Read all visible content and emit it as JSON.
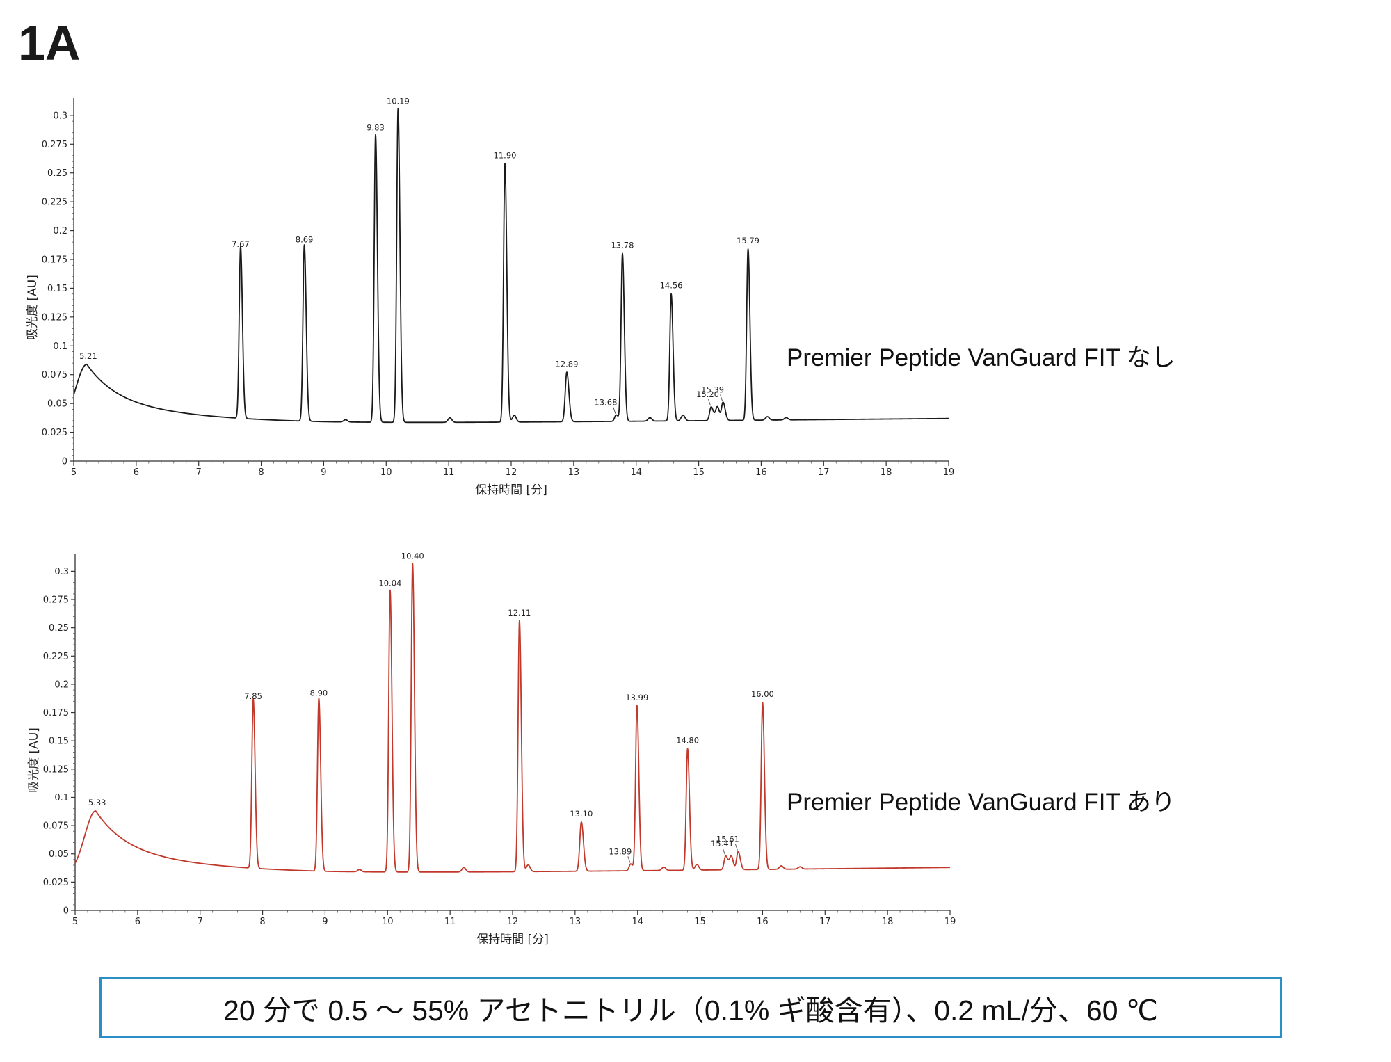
{
  "figure_label": "1A",
  "conditions": "20 分で 0.5 ～ 55% アセトニトリル（0.1% ギ酸含有）、0.2 mL/分、60 ℃",
  "colors": {
    "top_trace": "#1a1a1a",
    "bottom_trace": "#c0392b",
    "box_border": "#2a8fc4"
  },
  "chart_data": [
    {
      "type": "line",
      "panel_label": "Premier Peptide VanGuard FIT なし",
      "xlabel": "保持時間 [分]",
      "ylabel": "吸光度 [AU]",
      "xlim": [
        5,
        19
      ],
      "ylim": [
        0,
        0.3
      ],
      "xticks": [
        "5",
        "6",
        "7",
        "8",
        "9",
        "10",
        "11",
        "12",
        "13",
        "14",
        "15",
        "16",
        "17",
        "18",
        "19"
      ],
      "yticks": [
        "0",
        "0.025",
        "0.05",
        "0.075",
        "0.1",
        "0.125",
        "0.15",
        "0.175",
        "0.2",
        "0.225",
        "0.25",
        "0.275",
        "0.3"
      ],
      "color": "#1a1a1a",
      "baseline_start": 0.032,
      "baseline_end": 0.037,
      "hump": {
        "rt": 5.21,
        "height": 0.084
      },
      "peaks": [
        {
          "rt": 7.67,
          "height": 0.181,
          "label": "7.67"
        },
        {
          "rt": 8.69,
          "height": 0.185,
          "label": "8.69"
        },
        {
          "rt": 9.83,
          "height": 0.282,
          "label": "9.83"
        },
        {
          "rt": 10.19,
          "height": 0.305,
          "label": "10.19"
        },
        {
          "rt": 11.9,
          "height": 0.258,
          "label": "11.90"
        },
        {
          "rt": 12.89,
          "height": 0.077,
          "label": "12.89"
        },
        {
          "rt": 13.68,
          "height": 0.04,
          "label": "13.68"
        },
        {
          "rt": 13.78,
          "height": 0.18,
          "label": "13.78"
        },
        {
          "rt": 14.56,
          "height": 0.145,
          "label": "14.56"
        },
        {
          "rt": 15.2,
          "height": 0.047,
          "label": "15.20"
        },
        {
          "rt": 15.39,
          "height": 0.051,
          "label": "15.39"
        },
        {
          "rt": 15.79,
          "height": 0.184,
          "label": "15.79"
        }
      ]
    },
    {
      "type": "line",
      "panel_label": "Premier Peptide VanGuard FIT あり",
      "xlabel": "保持時間 [分]",
      "ylabel": "吸光度 [AU]",
      "xlim": [
        5,
        19
      ],
      "ylim": [
        0,
        0.3
      ],
      "xticks": [
        "5",
        "6",
        "7",
        "8",
        "9",
        "10",
        "11",
        "12",
        "13",
        "14",
        "15",
        "16",
        "17",
        "18",
        "19"
      ],
      "yticks": [
        "0",
        "0.025",
        "0.05",
        "0.075",
        "0.1",
        "0.125",
        "0.15",
        "0.175",
        "0.2",
        "0.225",
        "0.25",
        "0.275",
        "0.3"
      ],
      "color": "#c0392b",
      "baseline_start": 0.032,
      "baseline_end": 0.038,
      "hump": {
        "rt": 5.33,
        "height": 0.088
      },
      "peaks": [
        {
          "rt": 7.85,
          "height": 0.182,
          "label": "7.85"
        },
        {
          "rt": 8.9,
          "height": 0.185,
          "label": "8.90"
        },
        {
          "rt": 10.04,
          "height": 0.282,
          "label": "10.04"
        },
        {
          "rt": 10.4,
          "height": 0.306,
          "label": "10.40"
        },
        {
          "rt": 12.11,
          "height": 0.256,
          "label": "12.11"
        },
        {
          "rt": 13.1,
          "height": 0.078,
          "label": "13.10"
        },
        {
          "rt": 13.89,
          "height": 0.041,
          "label": "13.89"
        },
        {
          "rt": 13.99,
          "height": 0.181,
          "label": "13.99"
        },
        {
          "rt": 14.8,
          "height": 0.143,
          "label": "14.80"
        },
        {
          "rt": 15.41,
          "height": 0.048,
          "label": "15.41"
        },
        {
          "rt": 15.61,
          "height": 0.052,
          "label": "15.61"
        },
        {
          "rt": 16.0,
          "height": 0.184,
          "label": "16.00"
        }
      ]
    }
  ]
}
